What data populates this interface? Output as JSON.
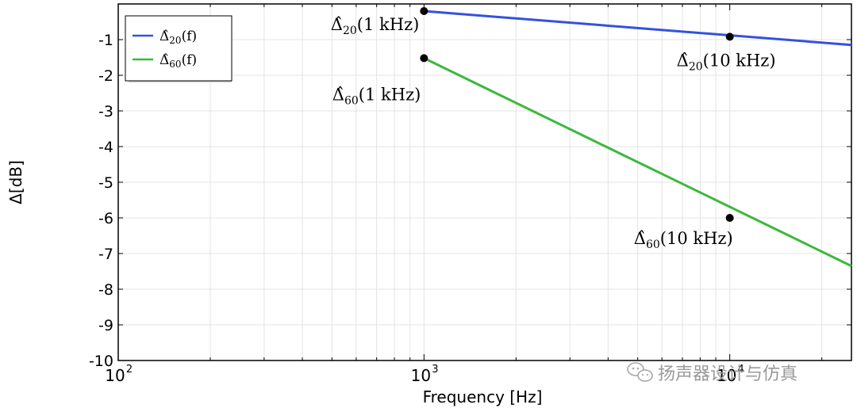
{
  "chart_data": {
    "type": "line",
    "xlabel": "Frequency [Hz]",
    "ylabel": "Δ[dB]",
    "xscale": "log",
    "xlim": [
      100,
      25000
    ],
    "ylim": [
      -10,
      0
    ],
    "yticks": [
      -1,
      -2,
      -3,
      -4,
      -5,
      -6,
      -7,
      -8,
      -9,
      -10
    ],
    "xticks": [
      {
        "value": 100,
        "base": "10",
        "exp": "2"
      },
      {
        "value": 1000,
        "base": "10",
        "exp": "3"
      },
      {
        "value": 10000,
        "base": "10",
        "exp": "4"
      }
    ],
    "grid": true,
    "legend_position": "top-left",
    "series": [
      {
        "name_main": "Δ̂",
        "name_sub": "20",
        "name_tail": "(f)",
        "color": "#3451e0",
        "x": [
          1000,
          25000
        ],
        "y": [
          -0.2,
          -1.15
        ],
        "markers": [
          {
            "x": 1000,
            "y": -0.2,
            "main": "Δ̂",
            "sub": "20",
            "tail": "(1 kHz)",
            "anchor": "end"
          },
          {
            "x": 10000,
            "y": -0.92,
            "main": "Δ̂",
            "sub": "20",
            "tail": "(10 kHz)",
            "anchor": "start-below"
          }
        ]
      },
      {
        "name_main": "Δ̂",
        "name_sub": "60",
        "name_tail": "(f)",
        "color": "#3cb83c",
        "x": [
          1000,
          25000
        ],
        "y": [
          -1.52,
          -7.35
        ],
        "markers": [
          {
            "x": 1000,
            "y": -1.52,
            "main": "Δ̂",
            "sub": "60",
            "tail": "(1 kHz)",
            "anchor": "end-below"
          },
          {
            "x": 10000,
            "y": -6.0,
            "main": "Δ̂",
            "sub": "60",
            "tail": "(10 kHz)",
            "anchor": "end-below-offset"
          }
        ]
      }
    ]
  },
  "watermark": {
    "text": "扬声器设计与仿真",
    "icon": "wechat-icon"
  }
}
